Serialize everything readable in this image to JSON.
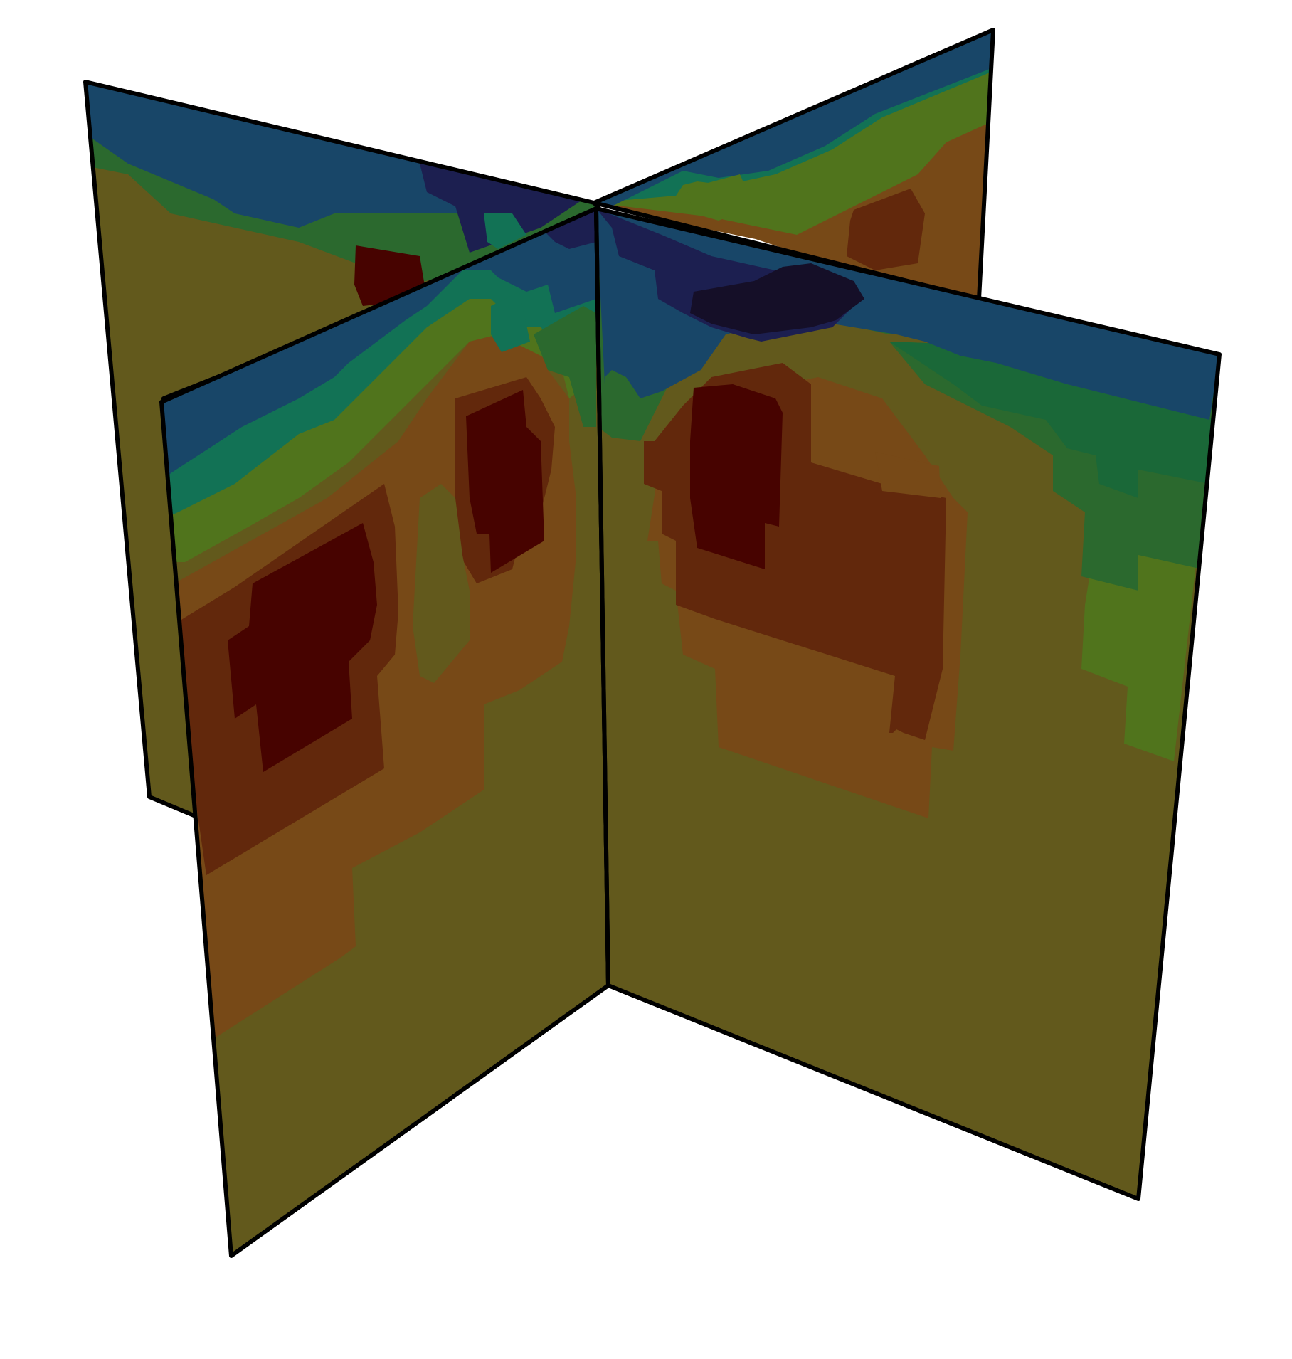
{
  "figure": {
    "description_visible_text": "",
    "palette": {
      "deep_navy": "#150f28",
      "navy": "#1c1f50",
      "blue": "#184668",
      "teal": "#127255",
      "green": "#2b692e",
      "lime": "#50741c",
      "olive": "#62591c",
      "amber": "#774917",
      "brown": "#62280c",
      "maroon": "#470300"
    },
    "outline_color": "#000000",
    "background": "#ffffff"
  }
}
